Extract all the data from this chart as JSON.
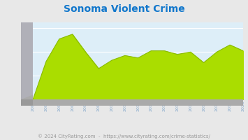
{
  "title": "Sonoma Violent Crime",
  "years": [
    2004,
    2005,
    2006,
    2007,
    2008,
    2009,
    2010,
    2011,
    2012,
    2013,
    2014,
    2015,
    2016,
    2017,
    2018,
    2019,
    2020
  ],
  "values": [
    0,
    32,
    51,
    55,
    40,
    26,
    33,
    37,
    35,
    41,
    41,
    38,
    40,
    31,
    40,
    46,
    41
  ],
  "ylim": [
    0,
    65
  ],
  "yticks": [
    0,
    20,
    40,
    60
  ],
  "fill_color": "#aadd00",
  "line_color": "#88bb00",
  "plot_bg": "#ddeef8",
  "grid_color": "#ffffff",
  "title_color": "#1177cc",
  "tick_color": "#88aacc",
  "left3d_color": "#aaaaaa",
  "left3d_shadow": "#999999",
  "bot3d_color": "#aaaaaa",
  "outer_bg": "#e8e8e8",
  "footer_text": "© 2024 CityRating.com  -  https://www.cityrating.com/crime-statistics/",
  "footer_color": "#999999",
  "title_fontsize": 10,
  "tick_fontsize": 4.5,
  "ytick_fontsize": 5,
  "footer_fontsize": 5.0
}
